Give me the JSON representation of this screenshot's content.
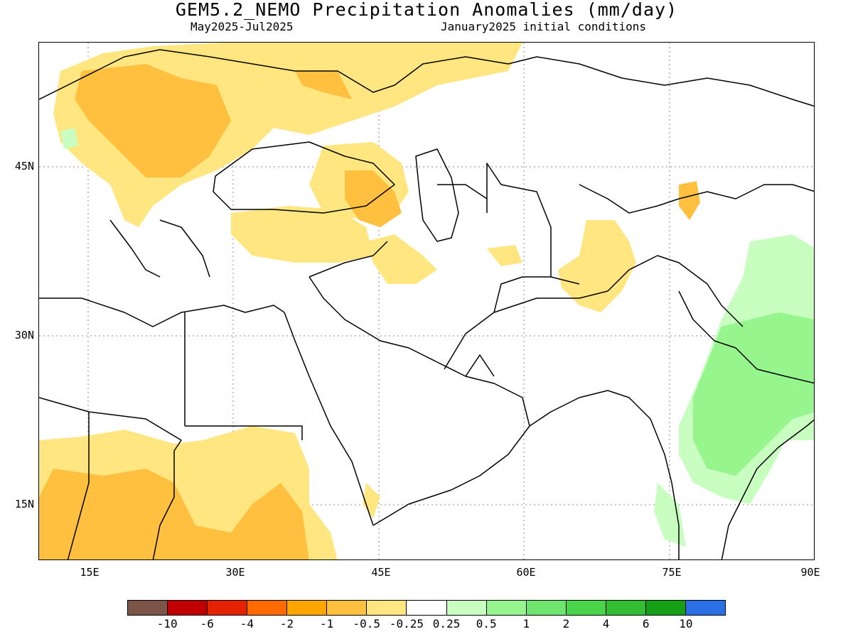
{
  "title": "GEM5.2_NEMO Precipitation Anomalies (mm/day)",
  "subtitle_left": "May2025-Jul2025",
  "subtitle_right": "January2025 initial conditions",
  "lat_labels": [
    "45N",
    "30N",
    "15N"
  ],
  "lon_labels": [
    "15E",
    "30E",
    "45E",
    "60E",
    "75E",
    "90E"
  ],
  "colorbar": {
    "colors": [
      "#7d5548",
      "#c00000",
      "#e52200",
      "#ff6a00",
      "#ffa500",
      "#ffc040",
      "#ffe680",
      "#ffffff",
      "#c8ffc0",
      "#96f58c",
      "#6ee66e",
      "#4ad44a",
      "#32bd32",
      "#14a014",
      "#2b6fe6"
    ],
    "labels": [
      "-10",
      "-6",
      "-4",
      "-2",
      "-1",
      "-0.5",
      "-0.25",
      "0.25",
      "0.5",
      "1",
      "2",
      "4",
      "6",
      "10"
    ]
  },
  "map_extent": {
    "lon": [
      10,
      90
    ],
    "lat": [
      10,
      53
    ]
  }
}
